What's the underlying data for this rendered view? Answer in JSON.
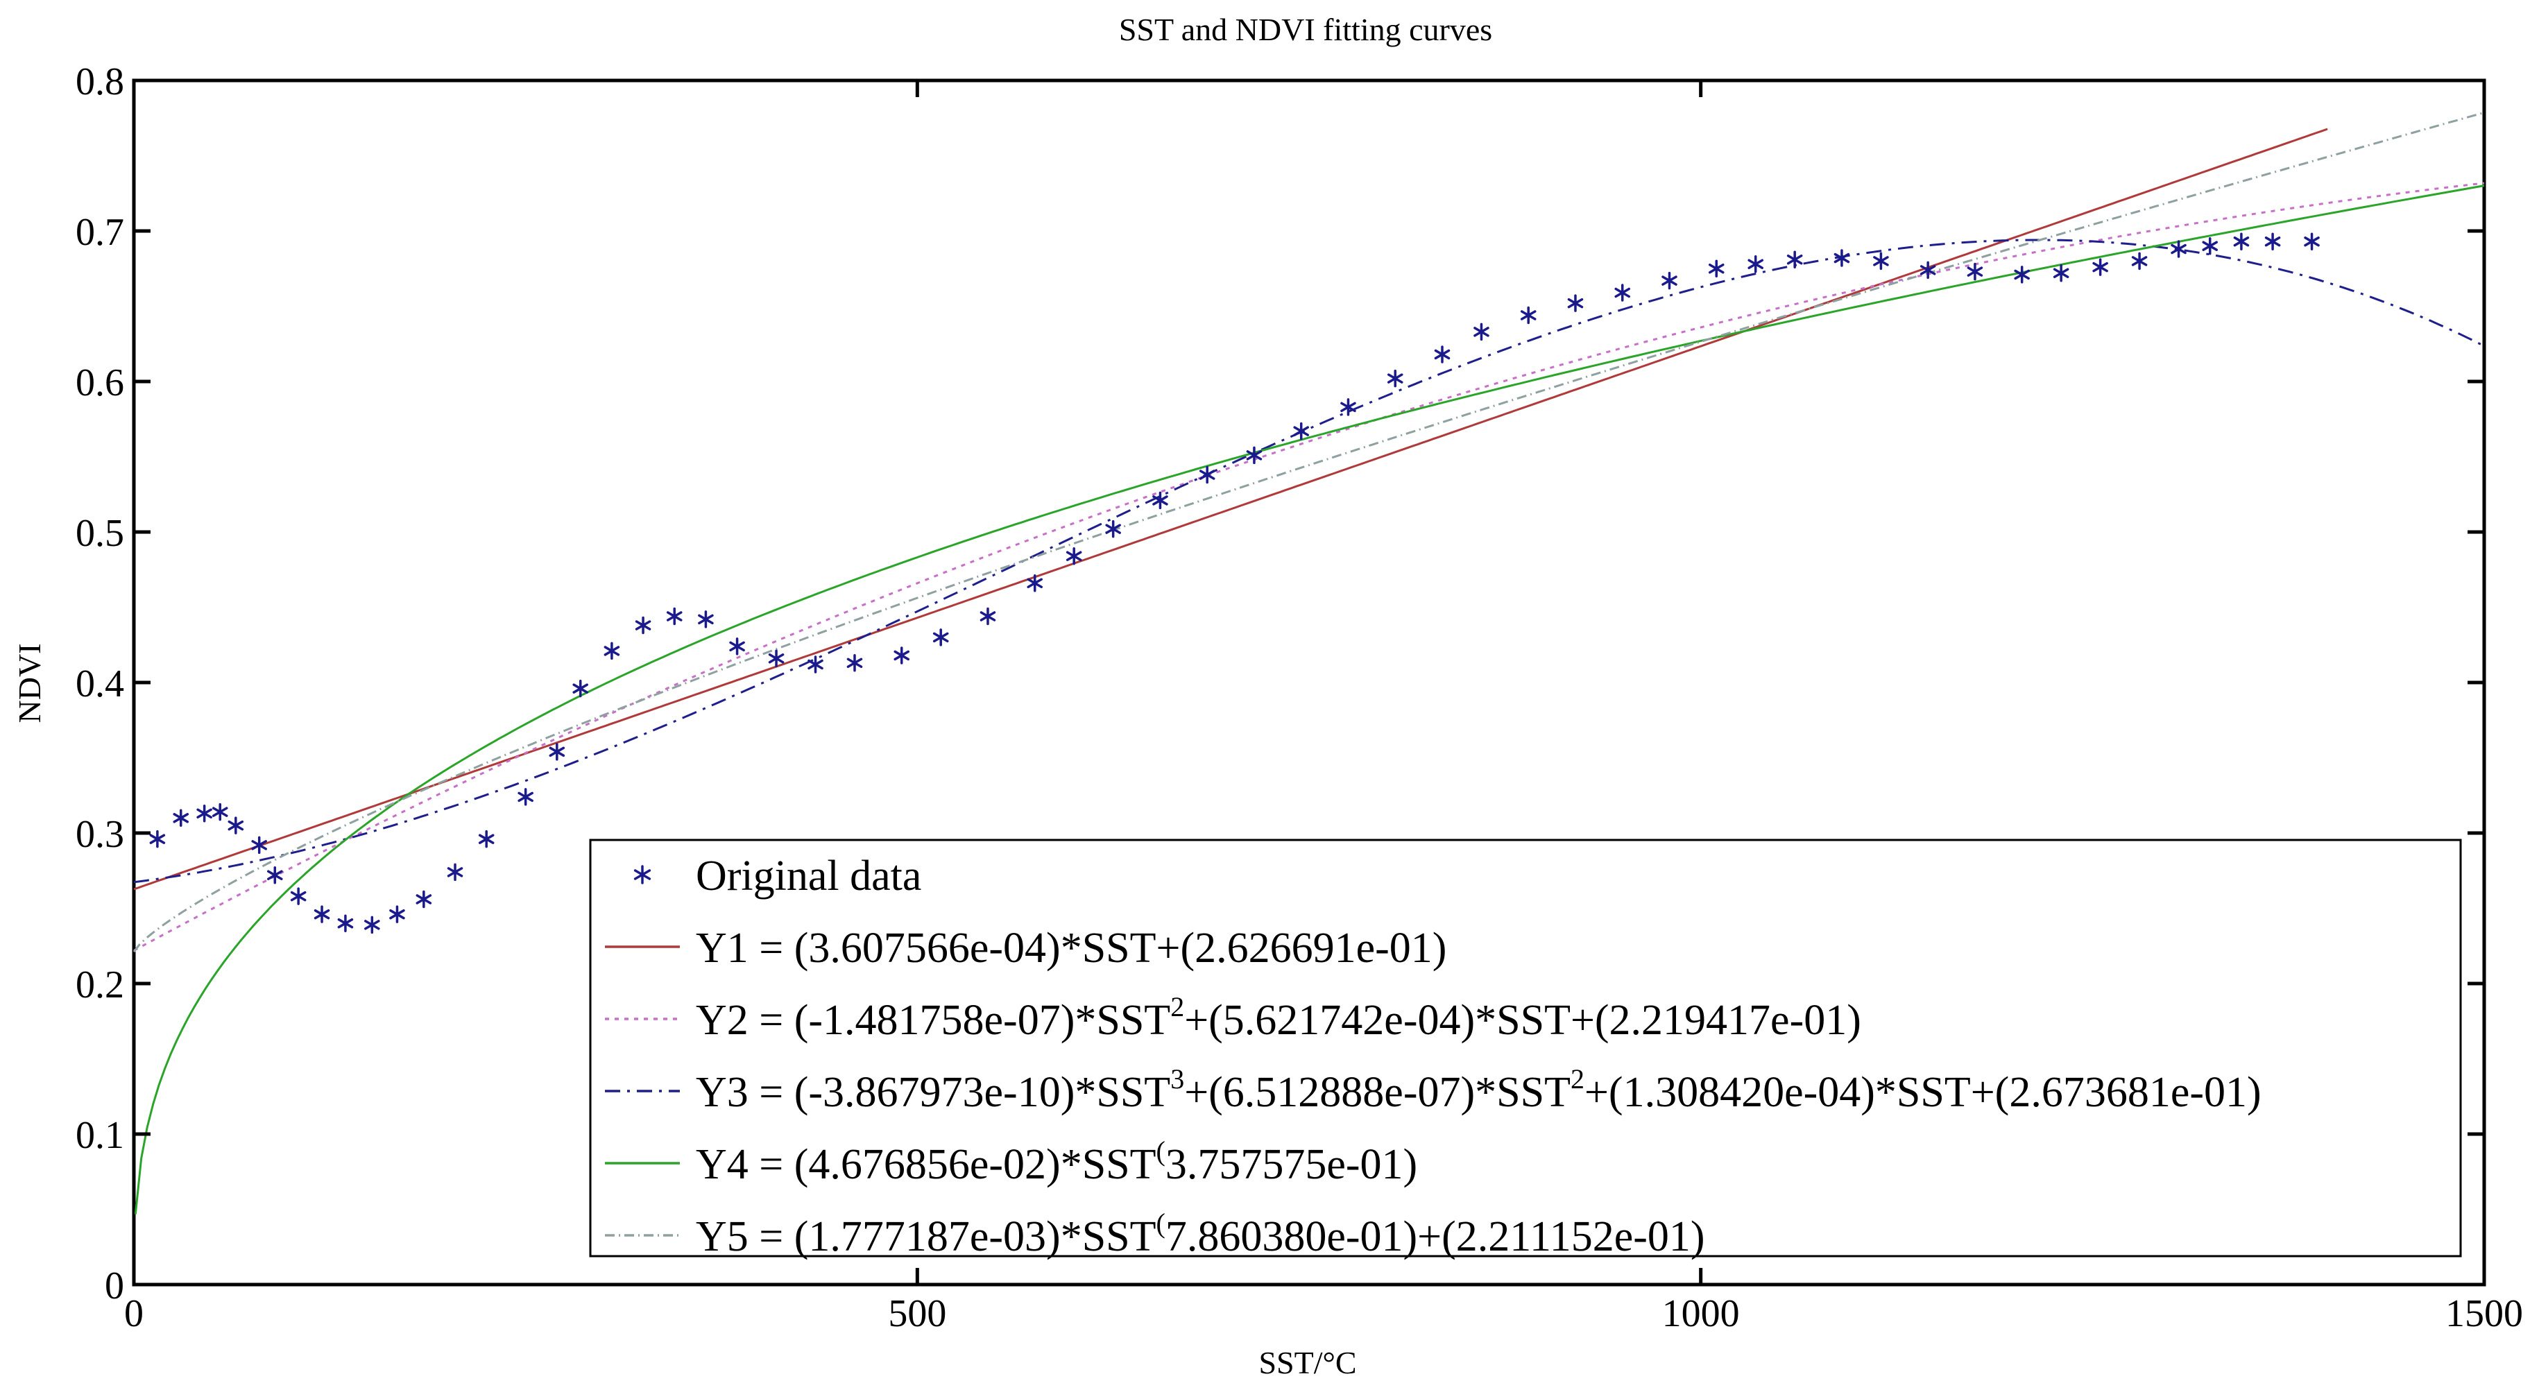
{
  "chart_data": {
    "type": "scatter",
    "title": "SST and NDVI fitting curves",
    "xlabel": "SST/°C",
    "ylabel": "NDVI",
    "xlim": [
      0,
      1500
    ],
    "ylim": [
      0,
      0.8
    ],
    "xticks": [
      0,
      500,
      1000,
      1500
    ],
    "yticks": [
      0,
      0.1,
      0.2,
      0.3,
      0.4,
      0.5,
      0.6,
      0.7,
      0.8
    ],
    "xtick_labels": [
      "0",
      "500",
      "1000",
      "1500"
    ],
    "ytick_labels": [
      "0",
      "0.1",
      "0.2",
      "0.3",
      "0.4",
      "0.5",
      "0.6",
      "0.7",
      "0.8"
    ],
    "legend_position": "bottom-right",
    "scatter": {
      "name": "Original data",
      "color": "#1a1a8c",
      "points": [
        [
          15,
          0.296
        ],
        [
          30,
          0.31
        ],
        [
          45,
          0.313
        ],
        [
          55,
          0.314
        ],
        [
          65,
          0.305
        ],
        [
          80,
          0.292
        ],
        [
          90,
          0.272
        ],
        [
          105,
          0.258
        ],
        [
          120,
          0.246
        ],
        [
          135,
          0.24
        ],
        [
          152,
          0.239
        ],
        [
          168,
          0.246
        ],
        [
          185,
          0.256
        ],
        [
          205,
          0.274
        ],
        [
          225,
          0.296
        ],
        [
          250,
          0.324
        ],
        [
          270,
          0.354
        ],
        [
          285,
          0.396
        ],
        [
          305,
          0.421
        ],
        [
          325,
          0.438
        ],
        [
          345,
          0.444
        ],
        [
          365,
          0.442
        ],
        [
          385,
          0.424
        ],
        [
          410,
          0.416
        ],
        [
          435,
          0.412
        ],
        [
          460,
          0.413
        ],
        [
          490,
          0.418
        ],
        [
          515,
          0.43
        ],
        [
          545,
          0.444
        ],
        [
          575,
          0.466
        ],
        [
          600,
          0.484
        ],
        [
          625,
          0.502
        ],
        [
          655,
          0.521
        ],
        [
          685,
          0.538
        ],
        [
          715,
          0.551
        ],
        [
          745,
          0.567
        ],
        [
          775,
          0.583
        ],
        [
          805,
          0.602
        ],
        [
          835,
          0.618
        ],
        [
          860,
          0.633
        ],
        [
          890,
          0.644
        ],
        [
          920,
          0.652
        ],
        [
          950,
          0.659
        ],
        [
          980,
          0.667
        ],
        [
          1010,
          0.675
        ],
        [
          1035,
          0.678
        ],
        [
          1060,
          0.681
        ],
        [
          1090,
          0.682
        ],
        [
          1115,
          0.68
        ],
        [
          1145,
          0.674
        ],
        [
          1175,
          0.673
        ],
        [
          1205,
          0.671
        ],
        [
          1230,
          0.672
        ],
        [
          1255,
          0.676
        ],
        [
          1280,
          0.68
        ],
        [
          1305,
          0.688
        ],
        [
          1325,
          0.69
        ],
        [
          1345,
          0.693
        ],
        [
          1365,
          0.693
        ],
        [
          1390,
          0.693
        ]
      ]
    },
    "series": [
      {
        "name": "Y1",
        "model": "linear",
        "coefficients": [
          0.0003607566,
          0.2626691
        ],
        "x_range": [
          0,
          1400
        ],
        "color": "#b03a3a",
        "dash": "",
        "legend": {
          "parts": [
            {
              "t": "Y1 = (3.607566e-04)*SST+(2.626691e-01)",
              "sup": false
            }
          ]
        }
      },
      {
        "name": "Y2",
        "model": "quadratic",
        "coefficients": [
          -1.481758e-07,
          0.0005621742,
          0.2219417
        ],
        "x_range": [
          0,
          1500
        ],
        "color": "#c86fc8",
        "dash": "6,8",
        "legend": {
          "parts": [
            {
              "t": "Y2 = (-1.481758e-07)*SST",
              "sup": false
            },
            {
              "t": "2",
              "sup": true
            },
            {
              "t": "+(5.621742e-04)*SST+(2.219417e-01)",
              "sup": false
            }
          ]
        }
      },
      {
        "name": "Y3",
        "model": "cubic",
        "coefficients": [
          -3.867973e-10,
          6.512888e-07,
          0.000130842,
          0.2673681
        ],
        "x_range": [
          0,
          1500
        ],
        "color": "#1e1e8c",
        "dash": "22,10,4,10",
        "legend": {
          "parts": [
            {
              "t": "Y3 = (-3.867973e-10)*SST",
              "sup": false
            },
            {
              "t": "3",
              "sup": true
            },
            {
              "t": "+(6.512888e-07)*SST",
              "sup": false
            },
            {
              "t": "2",
              "sup": true
            },
            {
              "t": "+(1.308420e-04)*SST+(2.673681e-01)",
              "sup": false
            }
          ]
        }
      },
      {
        "name": "Y4",
        "model": "power",
        "coefficients": [
          0.04676856,
          0.3757575
        ],
        "x_range": [
          1,
          1500
        ],
        "color": "#2aa52a",
        "dash": "",
        "legend": {
          "parts": [
            {
              "t": "Y4 = (4.676856e-02)*SST",
              "sup": false
            },
            {
              "t": "(",
              "sup": true
            },
            {
              "t": "3.757575e-01)",
              "sup": false
            }
          ]
        }
      },
      {
        "name": "Y5",
        "model": "power_offset",
        "coefficients": [
          0.001777187,
          0.786038,
          0.2211152
        ],
        "x_range": [
          0,
          1500
        ],
        "color": "#8fa0a0",
        "dash": "14,6,2,6",
        "legend": {
          "parts": [
            {
              "t": "Y5 = (1.777187e-03)*SST",
              "sup": false
            },
            {
              "t": "(",
              "sup": true
            },
            {
              "t": "7.860380e-01)+(2.211152e-01)",
              "sup": false
            }
          ]
        }
      }
    ]
  }
}
